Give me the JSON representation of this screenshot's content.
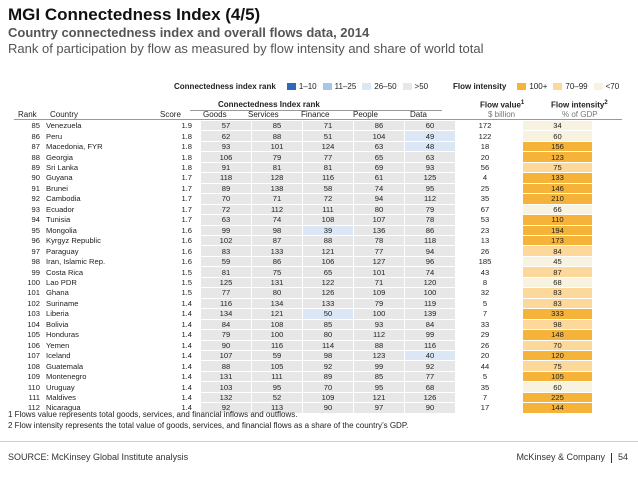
{
  "title": "MGI Connectedness Index (4/5)",
  "subtitle": "Country connectedness index and overall flows data, 2014",
  "subtitle2": "Rank of participation by flow as measured by flow intensity and share of world total",
  "legend_rank": {
    "title": "Connectedness index rank",
    "items": [
      {
        "label": "1–10",
        "color": "#2e6ab8"
      },
      {
        "label": "11–25",
        "color": "#a8c6ea"
      },
      {
        "label": "26–50",
        "color": "#dbe7f5"
      },
      {
        "label": ">50",
        "color": "#e7e7e7"
      }
    ]
  },
  "legend_intensity": {
    "title": "Flow intensity",
    "items": [
      {
        "label": "100+",
        "color": "#f5b33a"
      },
      {
        "label": "70–99",
        "color": "#fcd99a"
      },
      {
        "label": "<70",
        "color": "#f8f2e0"
      }
    ]
  },
  "headers": {
    "rank": "Rank",
    "country": "Country",
    "score": "Score",
    "group": "Connectedness Index rank",
    "goods": "Goods",
    "services": "Services",
    "finance": "Finance",
    "people": "People",
    "data": "Data",
    "flow_value": "Flow value",
    "flow_value_sup": "1",
    "flow_value_unit": "$ billion",
    "flow_intensity": "Flow intensity",
    "flow_intensity_sup": "2",
    "flow_intensity_unit": "% of GDP"
  },
  "rows": [
    {
      "rank": "85",
      "country": "Venezuela",
      "score": "1.9",
      "goods": "57",
      "services": "85",
      "finance": "71",
      "people": "86",
      "data": "60",
      "value": "172",
      "intensity": "34"
    },
    {
      "rank": "86",
      "country": "Peru",
      "score": "1.8",
      "goods": "62",
      "services": "88",
      "finance": "51",
      "people": "104",
      "data": "49",
      "value": "122",
      "intensity": "60"
    },
    {
      "rank": "87",
      "country": "Macedonia, FYR",
      "score": "1.8",
      "goods": "93",
      "services": "101",
      "finance": "124",
      "people": "63",
      "data": "48",
      "value": "18",
      "intensity": "156"
    },
    {
      "rank": "88",
      "country": "Georgia",
      "score": "1.8",
      "goods": "106",
      "services": "79",
      "finance": "77",
      "people": "65",
      "data": "63",
      "value": "20",
      "intensity": "123"
    },
    {
      "rank": "89",
      "country": "Sri Lanka",
      "score": "1.8",
      "goods": "91",
      "services": "81",
      "finance": "81",
      "people": "69",
      "data": "93",
      "value": "56",
      "intensity": "75"
    },
    {
      "rank": "90",
      "country": "Guyana",
      "score": "1.7",
      "goods": "118",
      "services": "128",
      "finance": "116",
      "people": "61",
      "data": "125",
      "value": "4",
      "intensity": "133"
    },
    {
      "rank": "91",
      "country": "Brunei",
      "score": "1.7",
      "goods": "89",
      "services": "138",
      "finance": "58",
      "people": "74",
      "data": "95",
      "value": "25",
      "intensity": "146"
    },
    {
      "rank": "92",
      "country": "Cambodia",
      "score": "1.7",
      "goods": "70",
      "services": "71",
      "finance": "72",
      "people": "94",
      "data": "112",
      "value": "35",
      "intensity": "210"
    },
    {
      "rank": "93",
      "country": "Ecuador",
      "score": "1.7",
      "goods": "72",
      "services": "112",
      "finance": "111",
      "people": "80",
      "data": "79",
      "value": "67",
      "intensity": "66"
    },
    {
      "rank": "94",
      "country": "Tunisia",
      "score": "1.7",
      "goods": "63",
      "services": "74",
      "finance": "108",
      "people": "107",
      "data": "78",
      "value": "53",
      "intensity": "110"
    },
    {
      "rank": "95",
      "country": "Mongolia",
      "score": "1.6",
      "goods": "99",
      "services": "98",
      "finance": "39",
      "people": "136",
      "data": "86",
      "value": "23",
      "intensity": "194"
    },
    {
      "rank": "96",
      "country": "Kyrgyz Republic",
      "score": "1.6",
      "goods": "102",
      "services": "87",
      "finance": "88",
      "people": "78",
      "data": "118",
      "value": "13",
      "intensity": "173"
    },
    {
      "rank": "97",
      "country": "Paraguay",
      "score": "1.6",
      "goods": "83",
      "services": "133",
      "finance": "121",
      "people": "77",
      "data": "94",
      "value": "26",
      "intensity": "84"
    },
    {
      "rank": "98",
      "country": "Iran, Islamic Rep.",
      "score": "1.6",
      "goods": "59",
      "services": "86",
      "finance": "106",
      "people": "127",
      "data": "96",
      "value": "185",
      "intensity": "45"
    },
    {
      "rank": "99",
      "country": "Costa Rica",
      "score": "1.5",
      "goods": "81",
      "services": "75",
      "finance": "65",
      "people": "101",
      "data": "74",
      "value": "43",
      "intensity": "87"
    },
    {
      "rank": "100",
      "country": "Lao PDR",
      "score": "1.5",
      "goods": "125",
      "services": "131",
      "finance": "122",
      "people": "71",
      "data": "120",
      "value": "8",
      "intensity": "68"
    },
    {
      "rank": "101",
      "country": "Ghana",
      "score": "1.5",
      "goods": "77",
      "services": "80",
      "finance": "126",
      "people": "109",
      "data": "100",
      "value": "32",
      "intensity": "83"
    },
    {
      "rank": "102",
      "country": "Suriname",
      "score": "1.4",
      "goods": "116",
      "services": "134",
      "finance": "133",
      "people": "79",
      "data": "119",
      "value": "5",
      "intensity": "83"
    },
    {
      "rank": "103",
      "country": "Liberia",
      "score": "1.4",
      "goods": "134",
      "services": "121",
      "finance": "50",
      "people": "100",
      "data": "139",
      "value": "7",
      "intensity": "333"
    },
    {
      "rank": "104",
      "country": "Bolivia",
      "score": "1.4",
      "goods": "84",
      "services": "108",
      "finance": "85",
      "people": "93",
      "data": "84",
      "value": "33",
      "intensity": "98"
    },
    {
      "rank": "105",
      "country": "Honduras",
      "score": "1.4",
      "goods": "79",
      "services": "100",
      "finance": "80",
      "people": "112",
      "data": "99",
      "value": "29",
      "intensity": "148"
    },
    {
      "rank": "106",
      "country": "Yemen",
      "score": "1.4",
      "goods": "90",
      "services": "116",
      "finance": "114",
      "people": "88",
      "data": "116",
      "value": "26",
      "intensity": "70"
    },
    {
      "rank": "107",
      "country": "Iceland",
      "score": "1.4",
      "goods": "107",
      "services": "59",
      "finance": "98",
      "people": "123",
      "data": "40",
      "value": "20",
      "intensity": "120"
    },
    {
      "rank": "108",
      "country": "Guatemala",
      "score": "1.4",
      "goods": "88",
      "services": "105",
      "finance": "92",
      "people": "99",
      "data": "92",
      "value": "44",
      "intensity": "75"
    },
    {
      "rank": "109",
      "country": "Montenegro",
      "score": "1.4",
      "goods": "131",
      "services": "111",
      "finance": "89",
      "people": "85",
      "data": "77",
      "value": "5",
      "intensity": "105"
    },
    {
      "rank": "110",
      "country": "Uruguay",
      "score": "1.4",
      "goods": "103",
      "services": "95",
      "finance": "70",
      "people": "95",
      "data": "68",
      "value": "35",
      "intensity": "60"
    },
    {
      "rank": "111",
      "country": "Maldives",
      "score": "1.4",
      "goods": "132",
      "services": "52",
      "finance": "109",
      "people": "121",
      "data": "126",
      "value": "7",
      "intensity": "225"
    },
    {
      "rank": "112",
      "country": "Nicaragua",
      "score": "1.4",
      "goods": "92",
      "services": "113",
      "finance": "90",
      "people": "97",
      "data": "90",
      "value": "17",
      "intensity": "144"
    }
  ],
  "footnotes": [
    "1 Flows value represents total goods, services, and financial inflows and outflows.",
    "2 Flow intensity represents the total value of goods, services, and financial flows as a share of the country’s GDP."
  ],
  "source": "SOURCE: McKinsey Global Institute analysis",
  "brand": "McKinsey & Company",
  "page_number": "54"
}
